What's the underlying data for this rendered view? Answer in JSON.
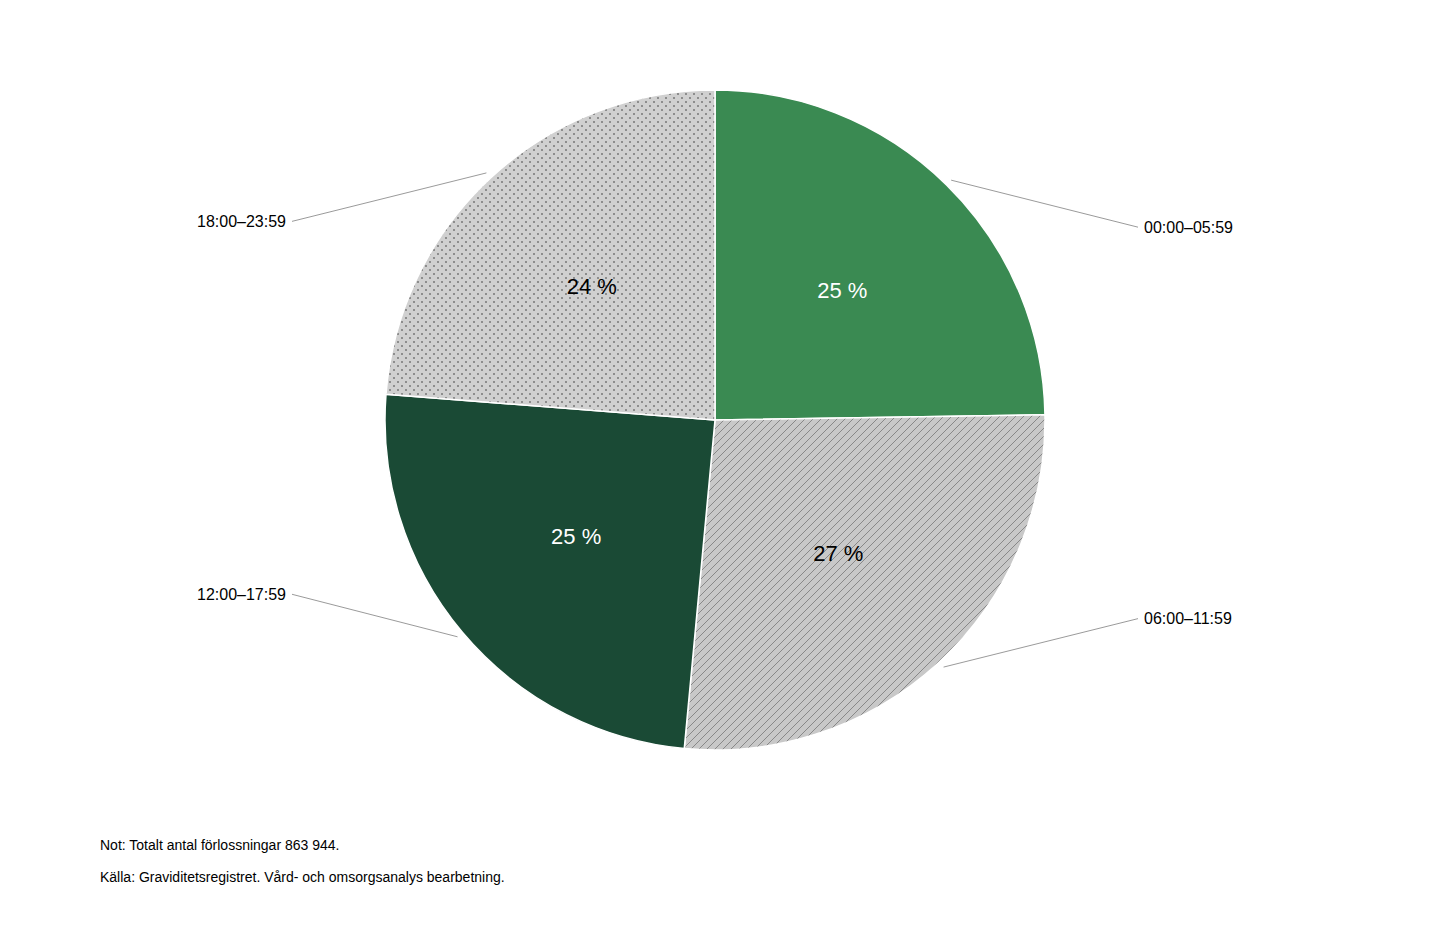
{
  "chart_data": {
    "type": "pie",
    "categories": [
      "00:00–05:59",
      "06:00–11:59",
      "12:00–17:59",
      "18:00–23:59"
    ],
    "values": [
      25,
      27,
      25,
      24
    ],
    "value_labels": [
      "25 %",
      "27 %",
      "25 %",
      "24 %"
    ],
    "colors": [
      "#3a8a52",
      "#c8c8c8",
      "#1a4a35",
      "#d0d0d0"
    ],
    "data_labels": true,
    "annotations": [
      "Not: Totalt antal förlossningar 863 944.",
      "Källa: Graviditetsregistret. Vård- och omsorgsanalys bearbetning."
    ]
  }
}
